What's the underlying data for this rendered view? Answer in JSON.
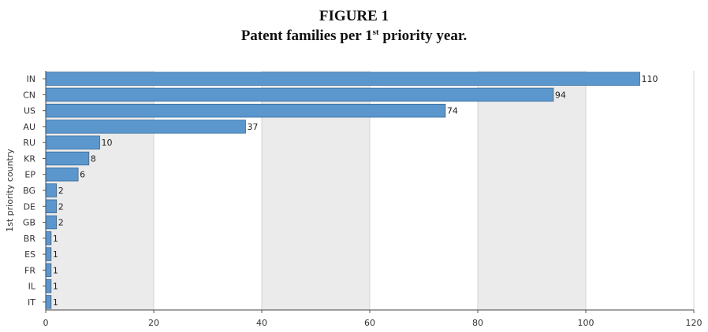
{
  "figure": {
    "label": "FIGURE 1",
    "subtitle_pre": "Patent families per 1",
    "subtitle_sup": "st",
    "subtitle_post": " priority year."
  },
  "chart_data": {
    "type": "bar",
    "orientation": "horizontal",
    "ylabel": "1st priority country",
    "xlabel": "",
    "categories": [
      "IN",
      "CN",
      "US",
      "AU",
      "RU",
      "KR",
      "EP",
      "BG",
      "DE",
      "GB",
      "BR",
      "ES",
      "FR",
      "IL",
      "IT"
    ],
    "values": [
      110,
      94,
      74,
      37,
      10,
      8,
      6,
      2,
      2,
      2,
      1,
      1,
      1,
      1,
      1
    ],
    "xlim": [
      0,
      120
    ],
    "xticks": [
      0,
      20,
      40,
      60,
      80,
      100,
      120
    ],
    "grid": true,
    "bar_color": "#5b97cc",
    "bar_edge_color": "#2f6aa0",
    "band_color": "#ebebeb"
  }
}
